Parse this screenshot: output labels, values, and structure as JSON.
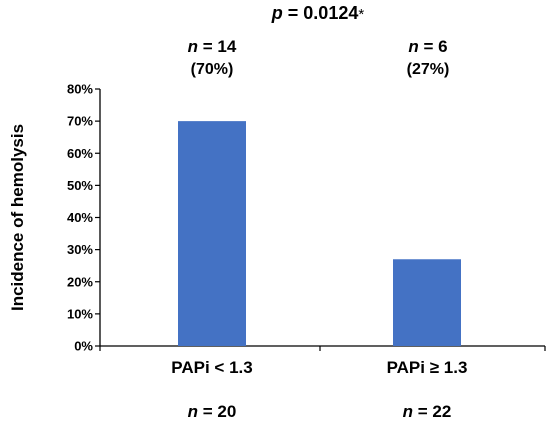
{
  "chart_data": {
    "type": "bar",
    "categories": [
      "PAPi < 1.3",
      "PAPi ≥ 1.3"
    ],
    "values": [
      70,
      27
    ],
    "ylabel": "Incidence of hemolysis",
    "ylim": [
      0,
      80
    ],
    "yticks": [
      "0%",
      "10%",
      "20%",
      "30%",
      "40%",
      "50%",
      "60%",
      "70%",
      "80%"
    ],
    "bar_color": "#4472C4",
    "pvalue": {
      "label": "p",
      "value": "= 0.0124",
      "marker": "*"
    },
    "bar_annotations": [
      {
        "n_label": "n",
        "n_value": "= 14",
        "percent": "(70%)"
      },
      {
        "n_label": "n",
        "n_value": "= 6",
        "percent": "(27%)"
      }
    ],
    "group_sizes": [
      {
        "n_label": "n",
        "n_value": "= 20"
      },
      {
        "n_label": "n",
        "n_value": "= 22"
      }
    ]
  }
}
